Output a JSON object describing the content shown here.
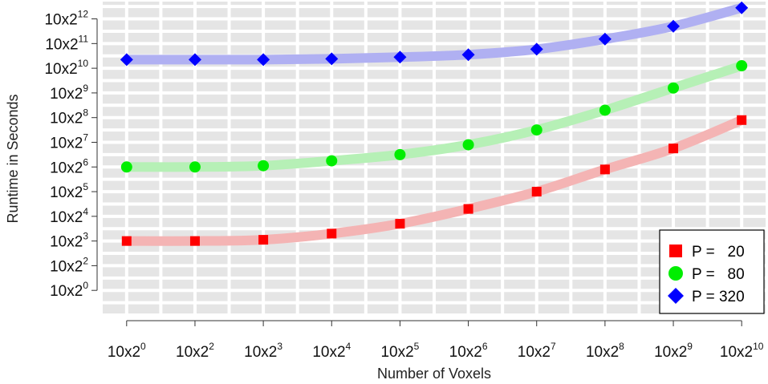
{
  "chart_data": {
    "type": "line",
    "xlabel": "Number of Voxels",
    "ylabel": "Runtime in Seconds",
    "x_ticks": [
      {
        "base": "10x2",
        "exp": "0"
      },
      {
        "base": "10x2",
        "exp": "2"
      },
      {
        "base": "10x2",
        "exp": "3"
      },
      {
        "base": "10x2",
        "exp": "4"
      },
      {
        "base": "10x2",
        "exp": "5"
      },
      {
        "base": "10x2",
        "exp": "6"
      },
      {
        "base": "10x2",
        "exp": "7"
      },
      {
        "base": "10x2",
        "exp": "8"
      },
      {
        "base": "10x2",
        "exp": "9"
      },
      {
        "base": "10x2",
        "exp": "10"
      }
    ],
    "y_ticks": [
      {
        "base": "10x2",
        "exp": "0",
        "level": 0
      },
      {
        "base": "10x2",
        "exp": "2",
        "level": 1
      },
      {
        "base": "10x2",
        "exp": "3",
        "level": 2
      },
      {
        "base": "10x2",
        "exp": "4",
        "level": 3
      },
      {
        "base": "10x2",
        "exp": "5",
        "level": 4
      },
      {
        "base": "10x2",
        "exp": "6",
        "level": 5
      },
      {
        "base": "10x2",
        "exp": "7",
        "level": 6
      },
      {
        "base": "10x2",
        "exp": "8",
        "level": 7
      },
      {
        "base": "10x2",
        "exp": "9",
        "level": 8
      },
      {
        "base": "10x2",
        "exp": "10",
        "level": 9
      },
      {
        "base": "10x2",
        "exp": "11",
        "level": 10
      },
      {
        "base": "10x2",
        "exp": "12",
        "level": 11
      }
    ],
    "ylim_levels": [
      -1.0,
      11.7
    ],
    "xlim_index": [
      -0.35,
      9.35
    ],
    "grid": true,
    "legend_position": "bottom-right",
    "series": [
      {
        "name": "P =   20",
        "marker": "square",
        "color": "#ff0000",
        "line_color": "#f4b4b4",
        "values": [
          2.0,
          2.0,
          2.05,
          2.3,
          2.7,
          3.3,
          4.0,
          4.9,
          5.75,
          6.9
        ]
      },
      {
        "name": "P =   80",
        "marker": "circle",
        "color": "#00ee00",
        "line_color": "#b6f0b6",
        "values": [
          5.0,
          5.0,
          5.05,
          5.25,
          5.5,
          5.9,
          6.5,
          7.3,
          8.2,
          9.1
        ]
      },
      {
        "name": "P = 320",
        "marker": "diamond",
        "color": "#0000ff",
        "line_color": "#b0b0f2",
        "values": [
          9.35,
          9.35,
          9.35,
          9.38,
          9.45,
          9.55,
          9.77,
          10.18,
          10.7,
          11.45
        ]
      }
    ]
  }
}
